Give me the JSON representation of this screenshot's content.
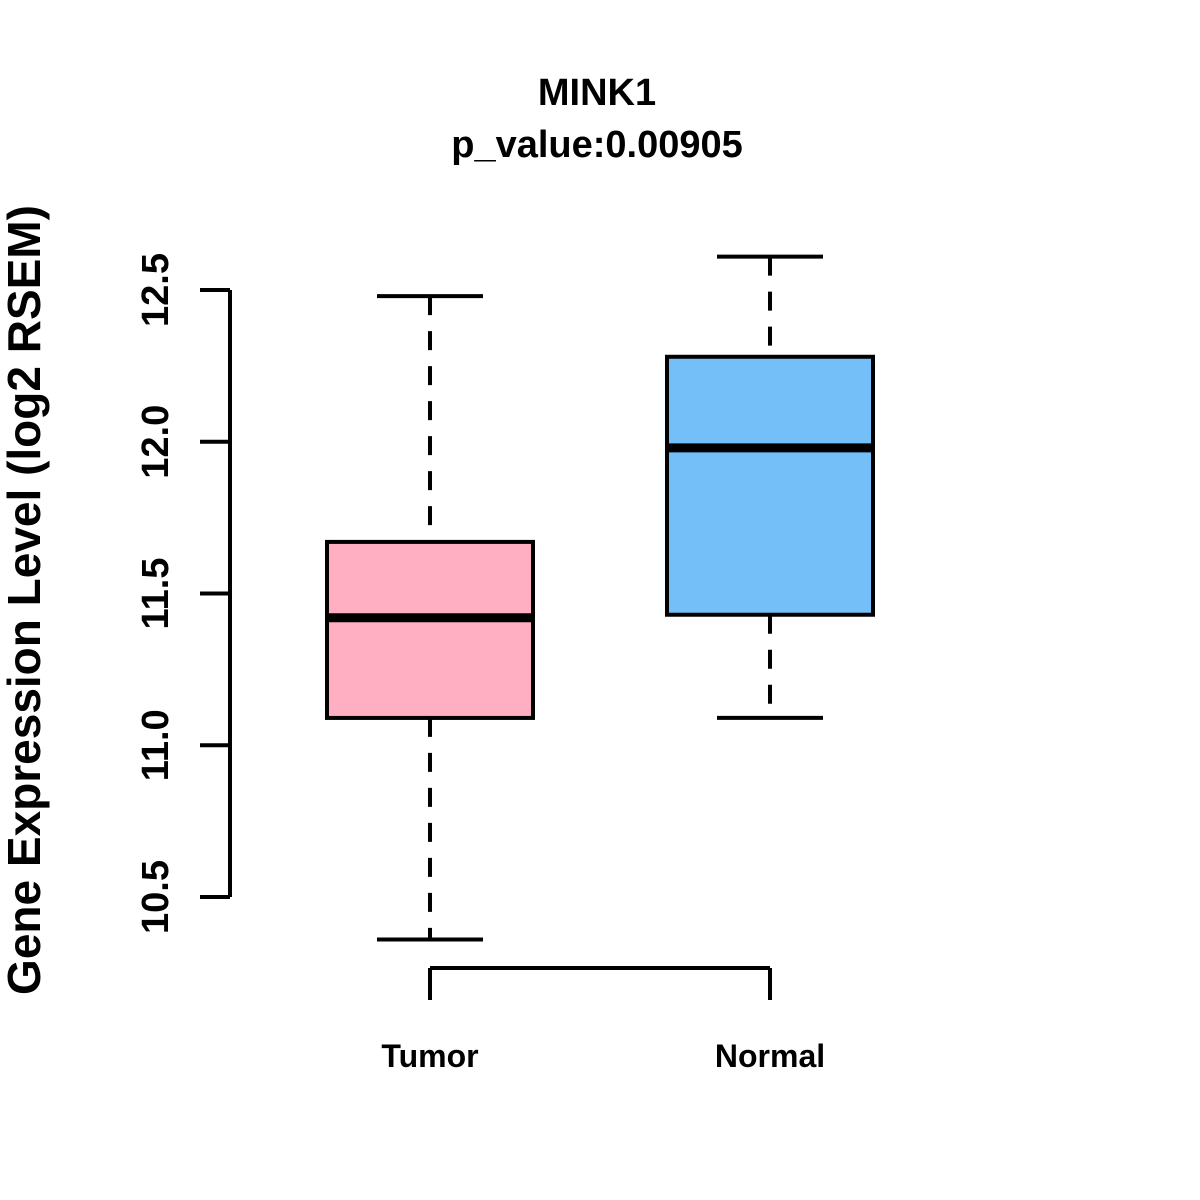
{
  "figure": {
    "background": "#ffffff",
    "text_color": "#000000"
  },
  "chart_data": {
    "type": "boxplot",
    "title": "MINK1",
    "subtitle": "p_value:0.00905",
    "xlabel": "",
    "ylabel": "Gene Expression Level (log2 RSEM)",
    "ylim": [
      10.5,
      12.5
    ],
    "grid": false,
    "legend": "none",
    "line_color": "#000000",
    "yticks": [
      {
        "label": "10.5",
        "value": 10.5
      },
      {
        "label": "11.0",
        "value": 11.0
      },
      {
        "label": "11.5",
        "value": 11.5
      },
      {
        "label": "12.0",
        "value": 12.0
      },
      {
        "label": "12.5",
        "value": 12.5
      }
    ],
    "groups": [
      {
        "label": "Tumor",
        "color": "#FFAFC1",
        "stats": {
          "whisker_low": 10.36,
          "q1": 11.09,
          "median": 11.42,
          "q3": 11.67,
          "whisker_high": 12.48
        }
      },
      {
        "label": "Normal",
        "color": "#74BFF8",
        "stats": {
          "whisker_low": 11.09,
          "q1": 11.43,
          "median": 11.98,
          "q3": 12.28,
          "whisker_high": 12.61
        }
      }
    ]
  }
}
